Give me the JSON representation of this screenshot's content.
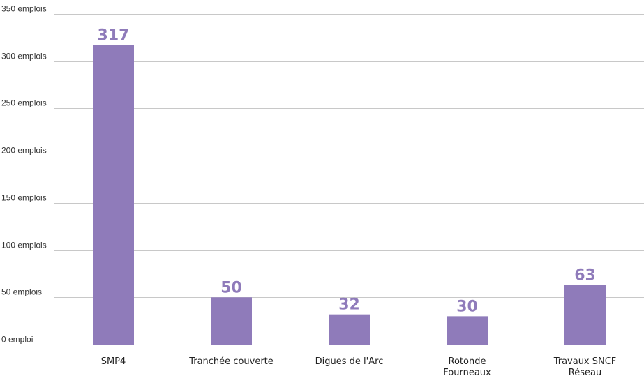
{
  "chart_data": {
    "type": "bar",
    "categories": [
      [
        "SMP4"
      ],
      [
        "Tranchée couverte"
      ],
      [
        "Digues de l'Arc"
      ],
      [
        "Rotonde",
        "Fourneaux"
      ],
      [
        "Travaux  SNCF",
        "Réseau"
      ]
    ],
    "values": [
      317,
      50,
      32,
      30,
      63
    ],
    "data_labels": [
      "317",
      "50",
      "32",
      "30",
      "63"
    ],
    "ylim": [
      0,
      350
    ],
    "y_ticks": [
      {
        "value": 0,
        "label": "0 emploi"
      },
      {
        "value": 50,
        "label": "50 emplois"
      },
      {
        "value": 100,
        "label": "100 emplois"
      },
      {
        "value": 150,
        "label": "150 emplois"
      },
      {
        "value": 200,
        "label": "200 emplois"
      },
      {
        "value": 250,
        "label": "250 emplois"
      },
      {
        "value": 300,
        "label": "300 emplois"
      },
      {
        "value": 350,
        "label": "350 emplois"
      }
    ],
    "grid": true,
    "colors": {
      "bar": "#8f7bba",
      "label": "#8f7bba",
      "grid": "#c8c8c8"
    }
  }
}
